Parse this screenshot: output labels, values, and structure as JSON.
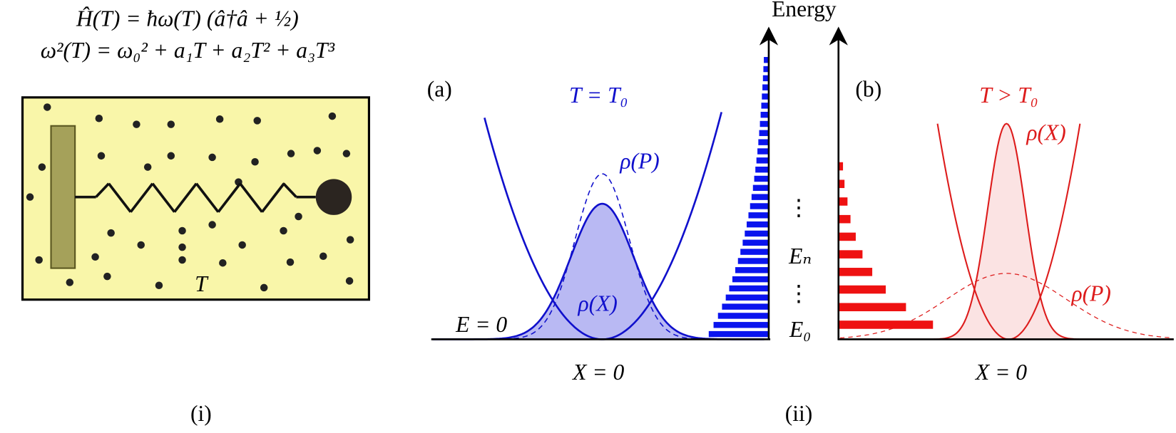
{
  "equations": [
    "Ĥ(T) = ħω(T) (â†â + ½)",
    "ω²(T) = ω₀² + a₁T + a₂T² + a₃T³"
  ],
  "panel_i": {
    "temperature": "T",
    "label": "(i)"
  },
  "panel_ii": {
    "label": "(ii)",
    "axis_label": "Energy",
    "levels": {
      "upper_dots": "⋮",
      "e_n": "Eₙ",
      "lower_dots": "⋮",
      "e_0": "E₀"
    },
    "a": {
      "label": "(a)",
      "condition": "T = T₀",
      "rho_p": "ρ(P)",
      "rho_x": "ρ(X)",
      "zero_energy": "E = 0",
      "origin": "X = 0"
    },
    "b": {
      "label": "(b)",
      "condition": "T > T₀",
      "rho_x": "ρ(X)",
      "rho_p": "ρ(P)",
      "origin": "X = 0"
    }
  }
}
